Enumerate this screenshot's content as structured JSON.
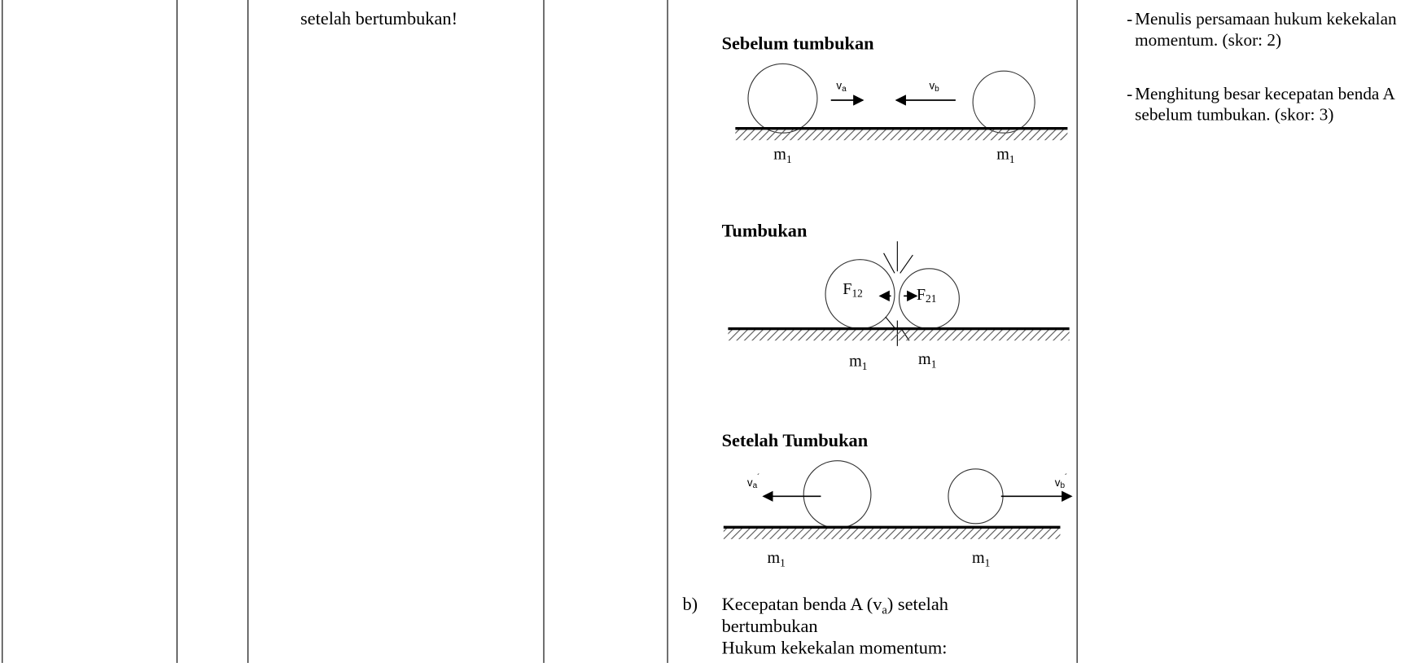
{
  "question": {
    "text": "setelah bertumbukan!"
  },
  "answer": {
    "figures": [
      {
        "title": "Sebelum tumbukan",
        "labels": [
          {
            "base": "v",
            "sub": "a"
          },
          {
            "base": "v",
            "sub": "b"
          },
          {
            "base": "m",
            "sub": "1"
          },
          {
            "base": "m",
            "sub": "1"
          }
        ]
      },
      {
        "title": "Tumbukan",
        "labels": [
          {
            "base": "F",
            "sub": "12"
          },
          {
            "base": "F",
            "sub": "21"
          },
          {
            "base": "m",
            "sub": "1"
          },
          {
            "base": "m",
            "sub": "1"
          }
        ]
      },
      {
        "title": "Setelah Tumbukan",
        "labels": [
          {
            "base": "v",
            "sub": "a",
            "sup": "´"
          },
          {
            "base": "v",
            "sub": "b",
            "sup": "´"
          },
          {
            "base": "m",
            "sub": "1"
          },
          {
            "base": "m",
            "sub": "1"
          }
        ]
      }
    ],
    "item": {
      "marker": "b)",
      "line1": {
        "before": "Kecepatan benda A (v",
        "sub": "a",
        "after": ") setelah"
      },
      "line2": "bertumbukan",
      "line3": "Hukum kekekalan momentum:"
    }
  },
  "rubric": [
    {
      "bullet": "-",
      "text": "Menulis persamaan hukum kekekalan momentum. (skor: 2)"
    },
    {
      "bullet": "-",
      "text": "Menghitung besar kecepatan benda A sebelum tumbukan. (skor: 3)"
    }
  ]
}
